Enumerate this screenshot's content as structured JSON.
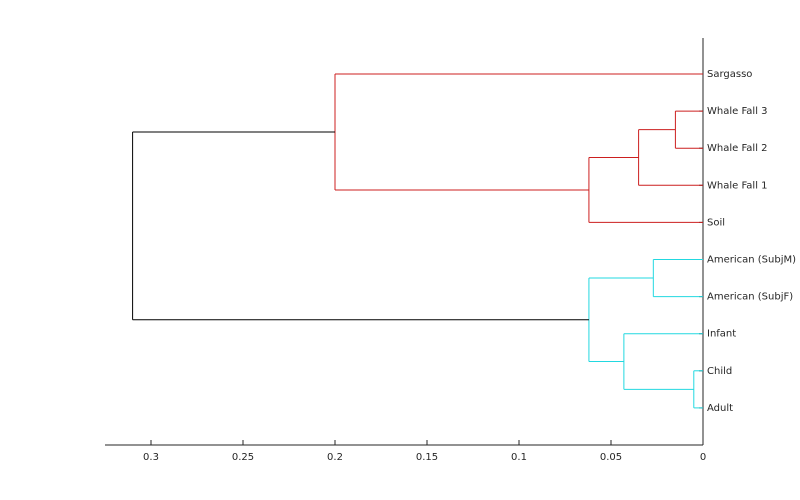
{
  "chart_data": {
    "type": "dendrogram",
    "xlim": [
      0.325,
      0
    ],
    "xticks": [
      0.3,
      0.25,
      0.2,
      0.15,
      0.1,
      0.05,
      0
    ],
    "tree": {
      "height": 0.31,
      "color": "#000000",
      "children": [
        {
          "height": 0.2,
          "color": "#cc1f1f",
          "children": [
            {
              "label": "Sargasso"
            },
            {
              "height": 0.062,
              "color": "#cc1f1f",
              "children": [
                {
                  "height": 0.035,
                  "color": "#cc1f1f",
                  "children": [
                    {
                      "height": 0.015,
                      "color": "#cc1f1f",
                      "children": [
                        {
                          "label": "Whale Fall 3"
                        },
                        {
                          "label": "Whale Fall 2"
                        }
                      ]
                    },
                    {
                      "label": "Whale Fall 1"
                    }
                  ]
                },
                {
                  "label": "Soil"
                }
              ]
            }
          ]
        },
        {
          "height": 0.062,
          "color": "#22d8e0",
          "children": [
            {
              "height": 0.027,
              "color": "#22d8e0",
              "children": [
                {
                  "label": "American (SubjM)"
                },
                {
                  "label": "American (SubjF)"
                }
              ]
            },
            {
              "height": 0.043,
              "color": "#22d8e0",
              "children": [
                {
                  "label": "Infant"
                },
                {
                  "height": 0.005,
                  "color": "#22d8e0",
                  "children": [
                    {
                      "label": "Child"
                    },
                    {
                      "label": "Adult"
                    }
                  ]
                }
              ]
            }
          ]
        }
      ]
    }
  }
}
